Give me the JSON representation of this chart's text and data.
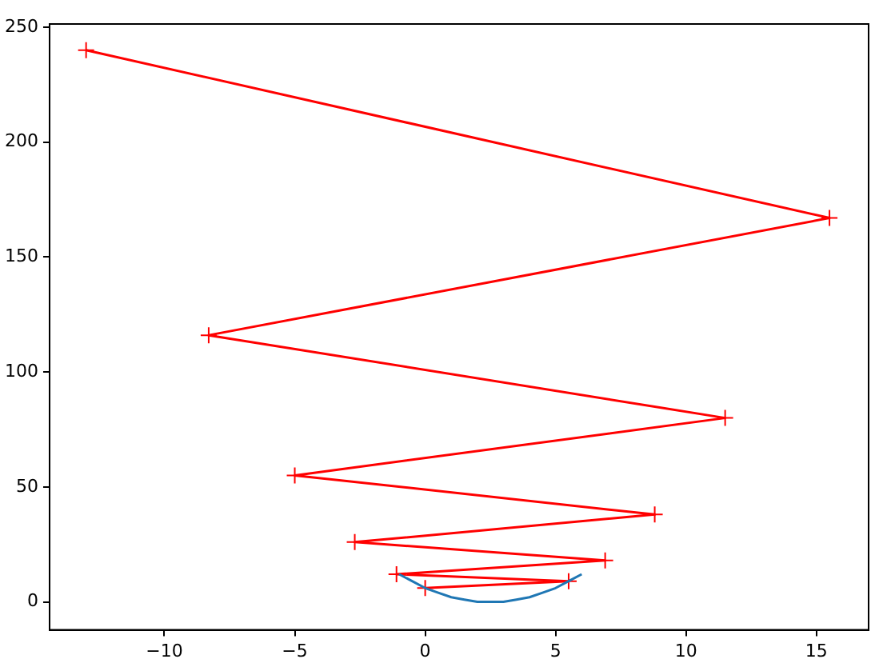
{
  "chart_data": {
    "type": "line",
    "xlim": [
      -14.4,
      17
    ],
    "ylim": [
      -12.2,
      251.4
    ],
    "xticks": [
      -10,
      -5,
      0,
      5,
      10,
      15
    ],
    "yticks": [
      0,
      50,
      100,
      150,
      200,
      250
    ],
    "grid": false,
    "series": [
      {
        "color": "#1f77b4",
        "marker": "none",
        "x": [
          -1,
          -0.5,
          0,
          0.5,
          1,
          1.5,
          2,
          2.5,
          3,
          3.5,
          4,
          4.5,
          5,
          5.5,
          6
        ],
        "values": [
          12,
          9,
          6,
          4,
          2,
          1,
          0,
          0,
          0,
          1,
          2,
          4,
          6,
          9,
          12
        ]
      },
      {
        "color": "#ff0000",
        "marker": "cross",
        "x": [
          0,
          5.5,
          -1.1,
          6.9,
          -2.7,
          8.8,
          -5,
          11.5,
          -8.3,
          15.5,
          -13
        ],
        "values": [
          6,
          9,
          12,
          18,
          26,
          38,
          55,
          80,
          116,
          167,
          240
        ]
      }
    ]
  }
}
